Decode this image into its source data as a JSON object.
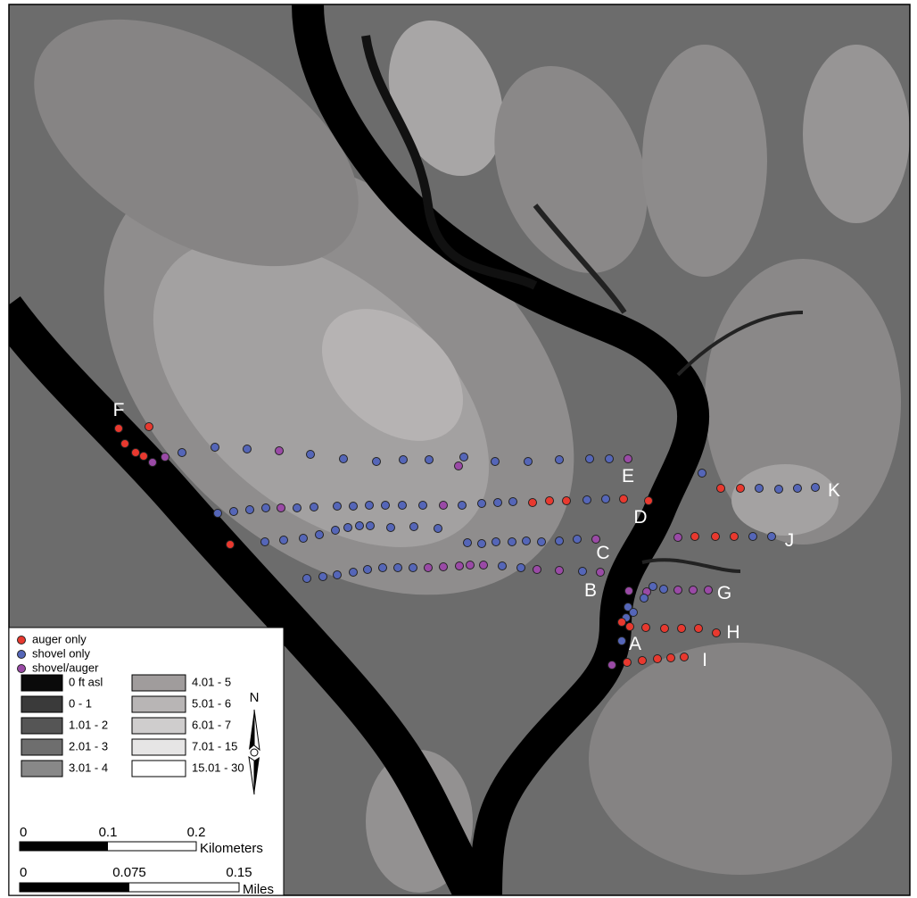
{
  "map": {
    "transect_labels": [
      "A",
      "B",
      "C",
      "D",
      "E",
      "F",
      "G",
      "H",
      "I",
      "J",
      "K"
    ],
    "point_legend": [
      {
        "label": "auger only",
        "color": "#e8392f"
      },
      {
        "label": "shovel only",
        "color": "#5566b8"
      },
      {
        "label": "shovel/auger",
        "color": "#9a4aa6"
      }
    ],
    "elevation_legend": [
      {
        "label": "0 ft asl",
        "color": "#0a0a0a"
      },
      {
        "label": "0 - 1",
        "color": "#3a3a3a"
      },
      {
        "label": "1.01 - 2",
        "color": "#555555"
      },
      {
        "label": "2.01 - 3",
        "color": "#6e6e6e"
      },
      {
        "label": "3.01 - 4",
        "color": "#888888"
      },
      {
        "label": "4.01 - 5",
        "color": "#a09c9c"
      },
      {
        "label": "5.01 - 6",
        "color": "#b8b5b5"
      },
      {
        "label": "6.01 - 7",
        "color": "#cfcdcd"
      },
      {
        "label": "7.01 - 15",
        "color": "#e6e5e5"
      },
      {
        "label": "15.01 - 30",
        "color": "#ffffff"
      }
    ],
    "north_label": "N",
    "scale_km": {
      "ticks": [
        "0",
        "0.1",
        "0.2"
      ],
      "unit": "Kilometers"
    },
    "scale_mi": {
      "ticks": [
        "0",
        "0.075",
        "0.15"
      ],
      "unit": "Miles"
    }
  }
}
